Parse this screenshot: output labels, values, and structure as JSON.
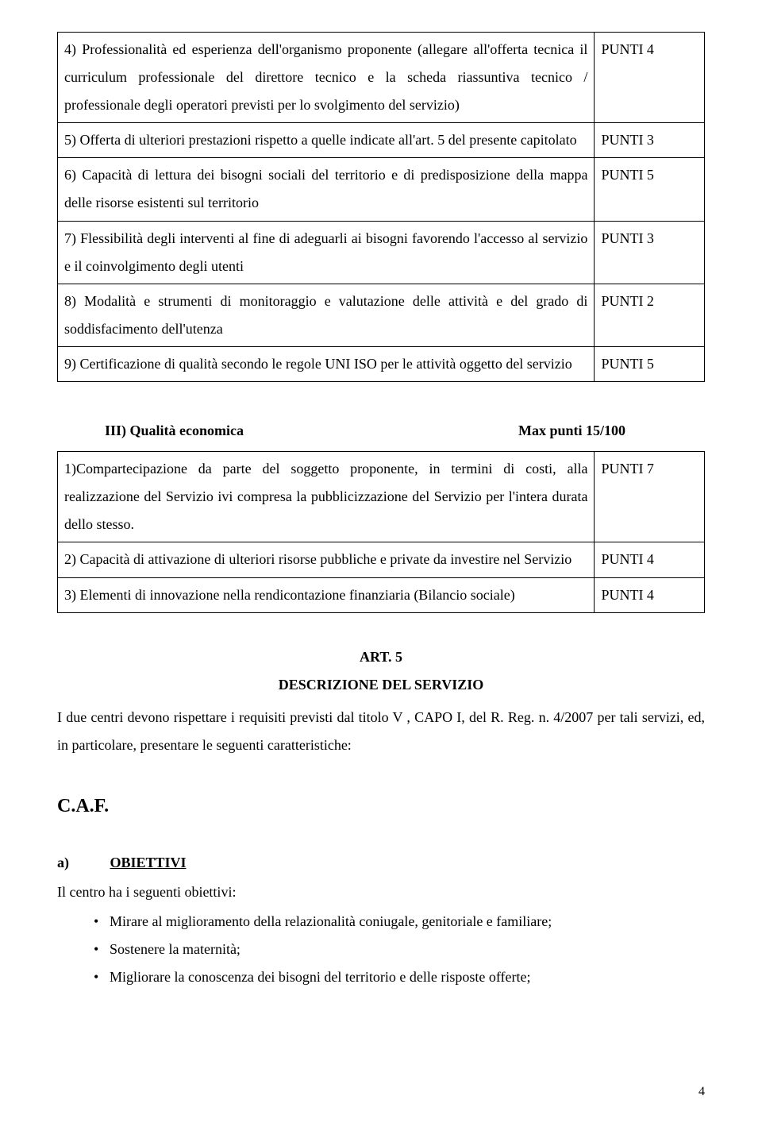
{
  "table1": {
    "rows": [
      {
        "text": "4)   Professionalità   ed  esperienza  dell'organismo  proponente   (allegare  all'offerta tecnica il curriculum professionale del direttore tecnico  e la scheda riassuntiva tecnico / professionale degli operatori previsti per lo svolgimento del servizio)",
        "points_label": "PUNTI 4"
      },
      {
        "text": "5)   Offerta  di  ulteriori  prestazioni  rispetto  a  quelle  indicate  all'art.  5  del  presente capitolato",
        "points_label": "PUNTI 3"
      },
      {
        "text": "6)   Capacità di lettura dei bisogni sociali del territorio e di predisposizione della mappa delle risorse esistenti sul territorio",
        "points_label": "PUNTI 5"
      },
      {
        "text": "7)   Flessibilità degli interventi al fine di adeguarli ai bisogni favorendo l'accesso al servizio e il coinvolgimento degli utenti",
        "points_label": "PUNTI 3"
      },
      {
        "text": "8) Modalità e strumenti di monitoraggio e valutazione delle attività e del grado di soddisfacimento dell'utenza",
        "points_label": "PUNTI 2"
      },
      {
        "text": "9) Certificazione di qualità secondo le regole UNI ISO per le attività oggetto del servizio",
        "points_label": "PUNTI 5"
      }
    ]
  },
  "section3": {
    "heading_left": "III) Qualità economica",
    "heading_right": "Max  punti  15/100"
  },
  "table2": {
    "rows": [
      {
        "text": "1)Compartecipazione  da  parte  del  soggetto    proponente,  in  termini  di  costi,  alla realizzazione del Servizio ivi compresa la pubblicizzazione del Servizio per l'intera durata dello stesso.",
        "points_label": "PUNTI 7"
      },
      {
        "text": "2)   Capacità  di  attivazione  di  ulteriori  risorse  pubbliche  e  private  da  investire  nel Servizio",
        "points_label": "PUNTI 4"
      },
      {
        "text": "3) Elementi di innovazione nella rendicontazione finanziaria (Bilancio sociale)",
        "points_label": "PUNTI 4"
      }
    ]
  },
  "art5": {
    "title": "ART. 5",
    "subtitle": "DESCRIZIONE DEL SERVIZIO",
    "paragraph": "I due centri devono rispettare i requisiti previsti dal titolo V , CAPO I, del R. Reg. n. 4/2007 per tali servizi, ed, in particolare, presentare le seguenti caratteristiche:"
  },
  "caf": "C.A.F.",
  "objectives": {
    "letter": "a)",
    "heading": "OBIETTIVI",
    "intro": "Il centro ha i seguenti obiettivi:",
    "items": [
      "Mirare al miglioramento della relazionalità coniugale, genitoriale e familiare;",
      "Sostenere la maternità;",
      "Migliorare la conoscenza dei bisogni del territorio e delle risposte offerte;"
    ]
  },
  "page_number": "4"
}
